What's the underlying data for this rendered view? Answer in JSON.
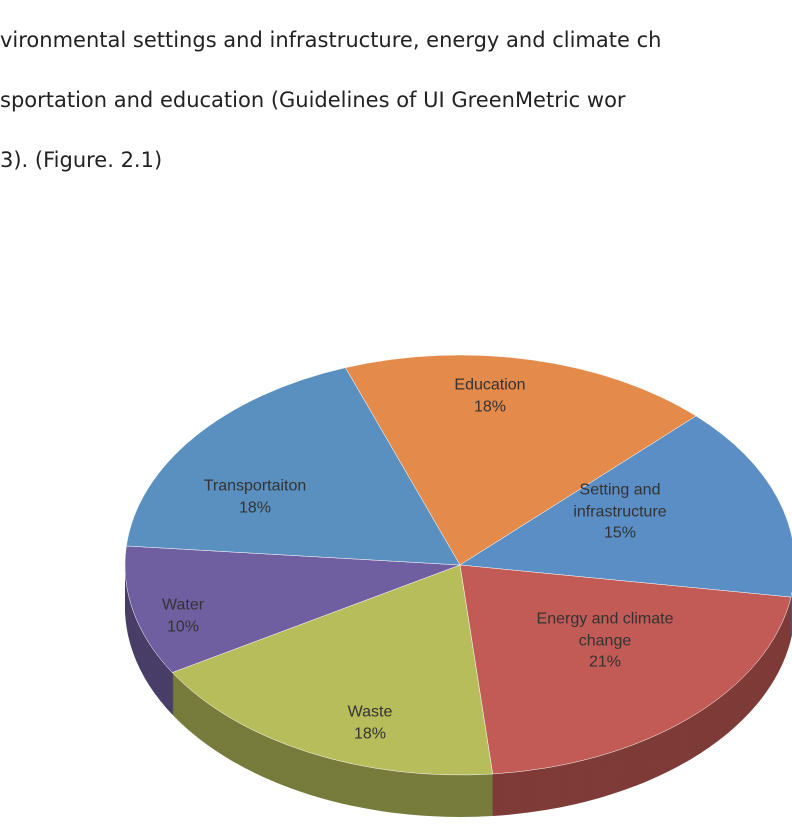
{
  "paragraph": [
    "vironmental settings and infrastructure, energy and climate ch",
    "sportation and education (Guidelines of UI GreenMetric wor",
    "3). (Figure. 2.1)"
  ],
  "chart_data": {
    "type": "pie",
    "categories": [
      "Education",
      "Setting and infrastructure",
      "Energy and climate change",
      "Waste",
      "Water",
      "Transportaiton"
    ],
    "values": [
      18,
      15,
      21,
      18,
      10,
      18
    ],
    "value_labels": [
      "18%",
      "15%",
      "21%",
      "18%",
      "10%",
      "18%"
    ],
    "colors": [
      "#e48a4a",
      "#5a8ec4",
      "#c25a55",
      "#b7bd5a",
      "#6f5fa0",
      "#5a90bf"
    ]
  }
}
